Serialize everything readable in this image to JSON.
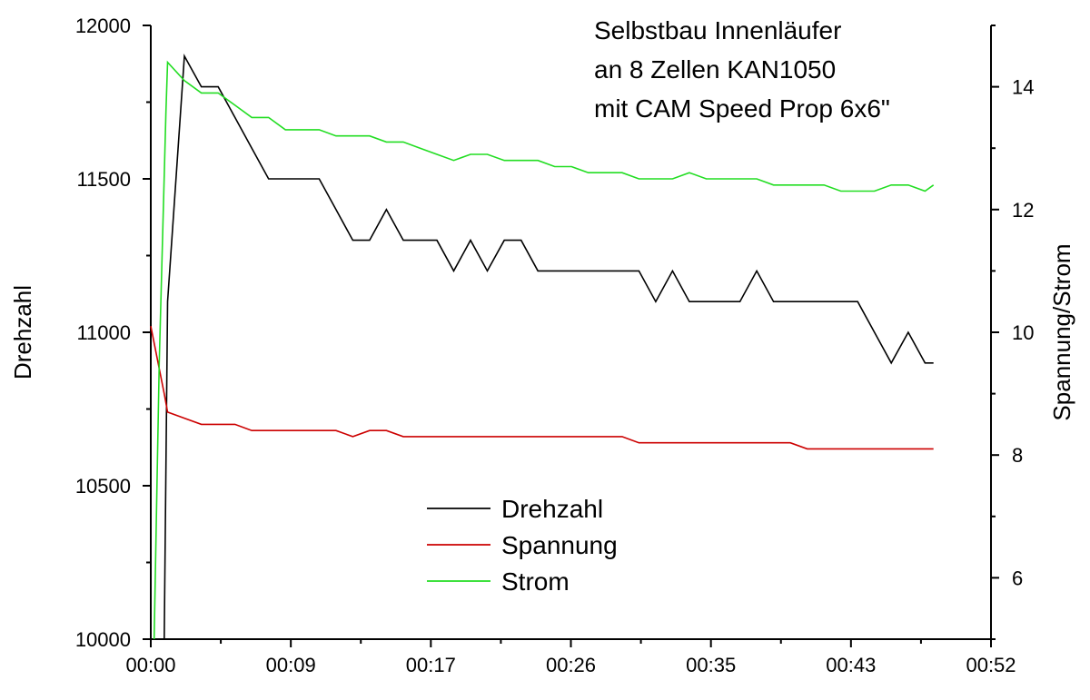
{
  "chart_data": {
    "type": "line",
    "title_lines": [
      "Selbstbau Innenläufer",
      "an 8 Zellen KAN1050",
      "mit CAM Speed Prop 6x6\""
    ],
    "xlabel": "",
    "ylabel": "Drehzahl",
    "y2label": "Spannung/Strom",
    "xlim": [
      0,
      52
    ],
    "x_tick_values": [
      0,
      8.667,
      17.333,
      26,
      34.667,
      43.333,
      52
    ],
    "x_tick_labels": [
      "00:00",
      "00:09",
      "00:17",
      "00:26",
      "00:35",
      "00:43",
      "00:52"
    ],
    "ylim": [
      10000,
      12000
    ],
    "y_ticks": [
      10000,
      10500,
      11000,
      11500,
      12000
    ],
    "y2lim": [
      5,
      15
    ],
    "y2_ticks": [
      6,
      8,
      10,
      12,
      14
    ],
    "y2_minor_ticks": [
      5,
      7,
      9,
      11,
      13,
      15
    ],
    "grid": false,
    "legend_position": "bottom-center",
    "series": [
      {
        "name": "Drehzahl",
        "axis": "left",
        "color": "#000000",
        "x": [
          0.83,
          1.04,
          2.08,
          3.13,
          4.17,
          5.21,
          6.25,
          7.29,
          8.33,
          9.38,
          10.42,
          11.46,
          12.5,
          13.54,
          14.58,
          15.63,
          16.67,
          17.71,
          18.75,
          19.79,
          20.83,
          21.88,
          22.92,
          23.96,
          25.0,
          26.04,
          27.08,
          28.13,
          29.17,
          30.21,
          31.25,
          32.29,
          33.33,
          34.38,
          35.42,
          36.46,
          37.5,
          38.54,
          39.58,
          40.63,
          41.67,
          42.71,
          43.75,
          44.79,
          45.83,
          46.88,
          47.92,
          48.44
        ],
        "values": [
          10000,
          11100,
          11900,
          11800,
          11800,
          11700,
          11600,
          11500,
          11500,
          11500,
          11500,
          11400,
          11300,
          11300,
          11400,
          11300,
          11300,
          11300,
          11200,
          11300,
          11200,
          11300,
          11300,
          11200,
          11200,
          11200,
          11200,
          11200,
          11200,
          11200,
          11100,
          11200,
          11100,
          11100,
          11100,
          11100,
          11200,
          11100,
          11100,
          11100,
          11100,
          11100,
          11100,
          11000,
          10900,
          11000,
          10900,
          10900
        ]
      },
      {
        "name": "Spannung",
        "axis": "right",
        "color": "#cc0000",
        "x": [
          0.0,
          0.83,
          1.04,
          2.08,
          3.13,
          4.17,
          5.21,
          6.25,
          7.29,
          8.33,
          9.38,
          10.42,
          11.46,
          12.5,
          13.54,
          14.58,
          15.63,
          16.67,
          17.71,
          18.75,
          19.79,
          20.83,
          21.88,
          22.92,
          23.96,
          25.0,
          26.04,
          27.08,
          28.13,
          29.17,
          30.21,
          31.25,
          32.29,
          33.33,
          34.38,
          35.42,
          36.46,
          37.5,
          38.54,
          39.58,
          40.63,
          41.67,
          42.71,
          43.75,
          44.79,
          45.83,
          46.88,
          47.92,
          48.44
        ],
        "values": [
          10.1,
          9.0,
          8.7,
          8.6,
          8.5,
          8.5,
          8.5,
          8.4,
          8.4,
          8.4,
          8.4,
          8.4,
          8.4,
          8.3,
          8.4,
          8.4,
          8.3,
          8.3,
          8.3,
          8.3,
          8.3,
          8.3,
          8.3,
          8.3,
          8.3,
          8.3,
          8.3,
          8.3,
          8.3,
          8.3,
          8.2,
          8.2,
          8.2,
          8.2,
          8.2,
          8.2,
          8.2,
          8.2,
          8.2,
          8.2,
          8.1,
          8.1,
          8.1,
          8.1,
          8.1,
          8.1,
          8.1,
          8.1,
          8.1
        ]
      },
      {
        "name": "Strom",
        "axis": "right",
        "color": "#22dd22",
        "x": [
          0.21,
          0.52,
          0.94,
          1.04,
          2.08,
          3.13,
          4.17,
          5.21,
          6.25,
          7.29,
          8.33,
          9.38,
          10.42,
          11.46,
          12.5,
          13.54,
          14.58,
          15.63,
          16.67,
          17.71,
          18.75,
          19.79,
          20.83,
          21.88,
          22.92,
          23.96,
          25.0,
          26.04,
          27.08,
          28.13,
          29.17,
          30.21,
          31.25,
          32.29,
          33.33,
          34.38,
          35.42,
          36.46,
          37.5,
          38.54,
          39.58,
          40.63,
          41.67,
          42.71,
          43.75,
          44.79,
          45.83,
          46.88,
          47.92,
          48.44
        ],
        "values": [
          5.0,
          9.5,
          13.6,
          14.4,
          14.1,
          13.9,
          13.9,
          13.7,
          13.5,
          13.5,
          13.3,
          13.3,
          13.3,
          13.2,
          13.2,
          13.2,
          13.1,
          13.1,
          13.0,
          12.9,
          12.8,
          12.9,
          12.9,
          12.8,
          12.8,
          12.8,
          12.7,
          12.7,
          12.6,
          12.6,
          12.6,
          12.5,
          12.5,
          12.5,
          12.6,
          12.5,
          12.5,
          12.5,
          12.5,
          12.4,
          12.4,
          12.4,
          12.4,
          12.3,
          12.3,
          12.3,
          12.4,
          12.4,
          12.3,
          12.4
        ]
      }
    ]
  }
}
